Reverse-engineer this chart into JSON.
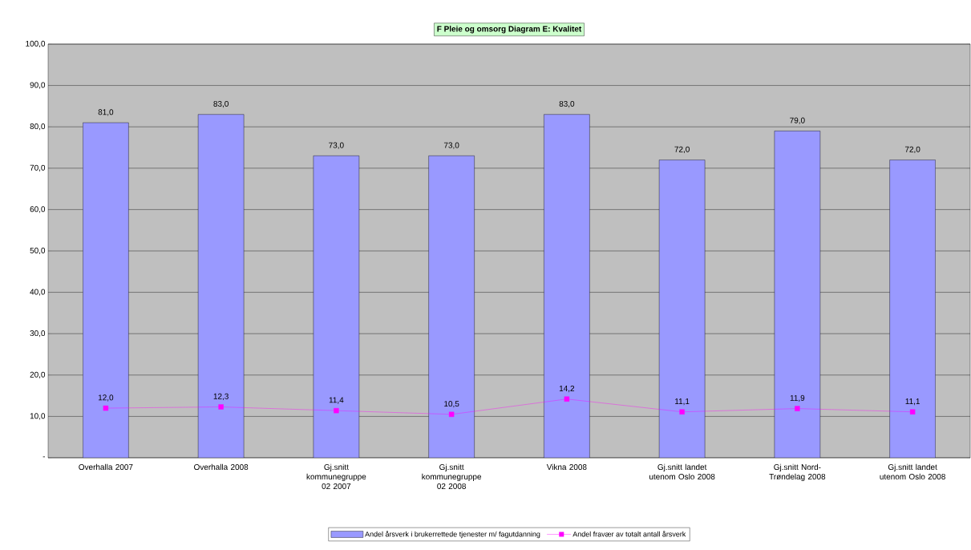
{
  "chart_data": {
    "type": "bar",
    "title": "F Pleie og omsorg Diagram E: Kvalitet",
    "categories": [
      "Overhalla 2007",
      "Overhalla 2008",
      "Gj.snitt kommunegruppe 02 2007",
      "Gj.snitt kommunegruppe 02 2008",
      "Vikna 2008",
      "Gj.snitt landet utenom Oslo 2008",
      "Gj.snitt Nord-Trøndelag 2008",
      "Gj.snitt landet utenom Oslo 2008"
    ],
    "series": [
      {
        "name": "Andel årsverk i brukerrettede tjenester m/ fagutdanning",
        "color": "#9999ff",
        "values": [
          81.0,
          83.0,
          73.0,
          73.0,
          83.0,
          72.0,
          79.0,
          72.0
        ],
        "value_labels": [
          "81,0",
          "83,0",
          "73,0",
          "73,0",
          "83,0",
          "72,0",
          "79,0",
          "72,0"
        ]
      },
      {
        "name": "Andel fravær av totalt antall årsverk",
        "type": "line",
        "marker": "square",
        "color": "#ff00ff",
        "values": [
          12.0,
          12.3,
          11.4,
          10.5,
          14.2,
          11.1,
          11.9,
          11.1
        ],
        "value_labels": [
          "12,0",
          "12,3",
          "11,4",
          "10,5",
          "14,2",
          "11,1",
          "11,9",
          "11,1"
        ]
      }
    ],
    "ylim": [
      0,
      100
    ],
    "yticks": [
      {
        "value": 0,
        "label": "-"
      },
      {
        "value": 10,
        "label": "10,0"
      },
      {
        "value": 20,
        "label": "20,0"
      },
      {
        "value": 30,
        "label": "30,0"
      },
      {
        "value": 40,
        "label": "40,0"
      },
      {
        "value": 50,
        "label": "50,0"
      },
      {
        "value": 60,
        "label": "60,0"
      },
      {
        "value": 70,
        "label": "70,0"
      },
      {
        "value": 80,
        "label": "80,0"
      },
      {
        "value": 90,
        "label": "90,0"
      },
      {
        "value": 100,
        "label": "100,0"
      }
    ],
    "grid": "y",
    "legend": "bottom"
  }
}
